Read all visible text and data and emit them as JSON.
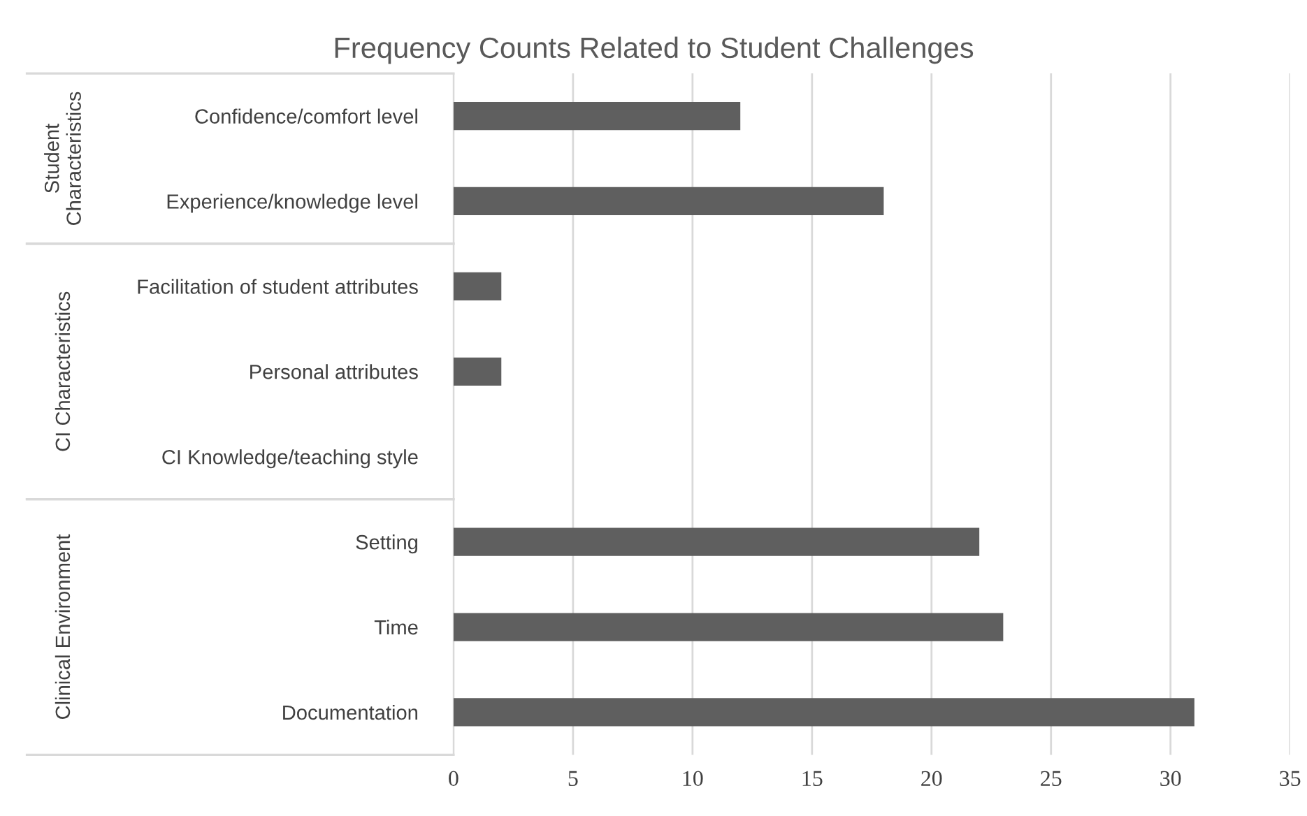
{
  "chart_data": {
    "type": "bar",
    "orientation": "horizontal",
    "title": "Frequency Counts Related to Student Challenges",
    "categories": [
      "Confidence/comfort level",
      "Experience/knowledge level",
      "Facilitation of student attributes",
      "Personal attributes",
      "CI Knowledge/teaching style",
      "Setting",
      "Time",
      "Documentation"
    ],
    "values": [
      12,
      18,
      2,
      2,
      0,
      22,
      23,
      31
    ],
    "color": "#5f5f5f",
    "xlim": [
      0,
      35
    ],
    "xticks": [
      0,
      5,
      10,
      15,
      20,
      25,
      30,
      35
    ],
    "grid": "x",
    "annotations": [
      "Student\nCharacteristics",
      "CI Characteristics",
      "Clinical Environment"
    ]
  }
}
